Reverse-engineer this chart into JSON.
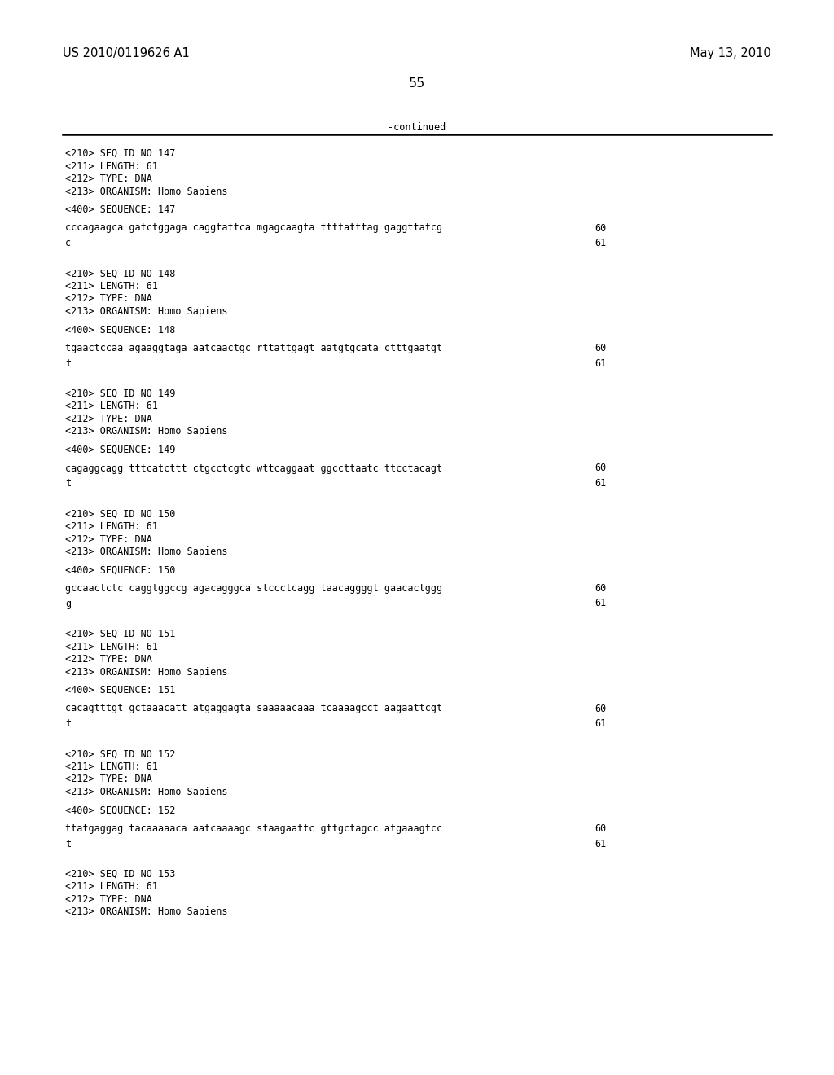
{
  "header_left": "US 2010/0119626 A1",
  "header_right": "May 13, 2010",
  "page_number": "55",
  "continued_label": "-continued",
  "background_color": "#ffffff",
  "text_color": "#000000",
  "font_size_header": 10.5,
  "font_size_body": 8.5,
  "font_size_page": 11.5,
  "sequences": [
    {
      "seq_id": "147",
      "length": "61",
      "type": "DNA",
      "organism": "Homo Sapiens",
      "seq_num": "147",
      "seq_line1": "cccagaagca gatctggaga caggtattca mgagcaagta ttttatttag gaggttatcg",
      "seq_line1_num": "60",
      "seq_line2": "c",
      "seq_line2_num": "61"
    },
    {
      "seq_id": "148",
      "length": "61",
      "type": "DNA",
      "organism": "Homo Sapiens",
      "seq_num": "148",
      "seq_line1": "tgaactccaa agaaggtaga aatcaactgc rttattgagt aatgtgcata ctttgaatgt",
      "seq_line1_num": "60",
      "seq_line2": "t",
      "seq_line2_num": "61"
    },
    {
      "seq_id": "149",
      "length": "61",
      "type": "DNA",
      "organism": "Homo Sapiens",
      "seq_num": "149",
      "seq_line1": "cagaggcagg tttcatcttt ctgcctcgtc wttcaggaat ggccttaatc ttcctacagt",
      "seq_line1_num": "60",
      "seq_line2": "t",
      "seq_line2_num": "61"
    },
    {
      "seq_id": "150",
      "length": "61",
      "type": "DNA",
      "organism": "Homo Sapiens",
      "seq_num": "150",
      "seq_line1": "gccaactctc caggtggccg agacagggca stccctcagg taacaggggt gaacactggg",
      "seq_line1_num": "60",
      "seq_line2": "g",
      "seq_line2_num": "61"
    },
    {
      "seq_id": "151",
      "length": "61",
      "type": "DNA",
      "organism": "Homo Sapiens",
      "seq_num": "151",
      "seq_line1": "cacagtttgt gctaaacatt atgaggagta saaaaacaaa tcaaaagcct aagaattcgt",
      "seq_line1_num": "60",
      "seq_line2": "t",
      "seq_line2_num": "61"
    },
    {
      "seq_id": "152",
      "length": "61",
      "type": "DNA",
      "organism": "Homo Sapiens",
      "seq_num": "152",
      "seq_line1": "ttatgaggag tacaaaaaca aatcaaaagc staagaattc gttgctagcc atgaaagtcc",
      "seq_line1_num": "60",
      "seq_line2": "t",
      "seq_line2_num": "61"
    },
    {
      "seq_id": "153",
      "length": "61",
      "type": "DNA",
      "organism": "Homo Sapiens",
      "seq_num": null,
      "seq_line1": null,
      "seq_line1_num": null,
      "seq_line2": null,
      "seq_line2_num": null
    }
  ]
}
